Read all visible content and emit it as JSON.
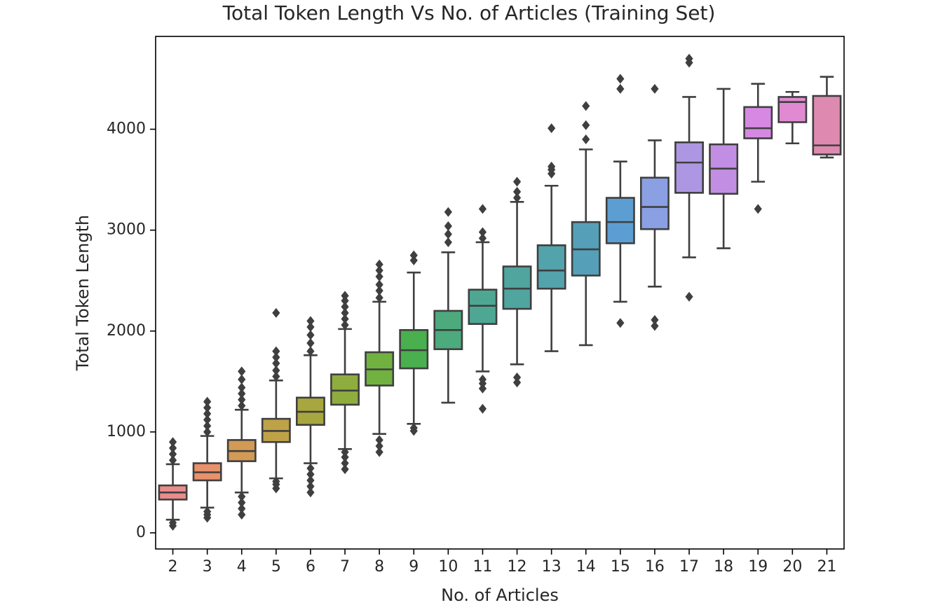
{
  "chart_data": {
    "type": "box",
    "title": "Total Token Length Vs No. of Articles (Training Set)",
    "xlabel": "No. of Articles",
    "ylabel": "Total Token Length",
    "ylim": [
      -160,
      4920
    ],
    "yticks": [
      0,
      1000,
      2000,
      3000,
      4000
    ],
    "grid": false,
    "categories": [
      "2",
      "3",
      "4",
      "5",
      "6",
      "7",
      "8",
      "9",
      "10",
      "11",
      "12",
      "13",
      "14",
      "15",
      "16",
      "17",
      "18",
      "19",
      "20",
      "21"
    ],
    "colors": [
      "#ec8b8b",
      "#e8916b",
      "#d29a54",
      "#bfa247",
      "#a8a73f",
      "#8fad3e",
      "#71b140",
      "#4aaf4e",
      "#4daa7d",
      "#4ea793",
      "#50a59f",
      "#52a3ab",
      "#55a0b8",
      "#5c9ed2",
      "#8aa0e3",
      "#ad97e3",
      "#c28ee4",
      "#d689e3",
      "#e08ad2",
      "#de8ab0"
    ],
    "boxes": [
      {
        "q1": 330,
        "median": 400,
        "q3": 470,
        "whisker_low": 130,
        "whisker_high": 680,
        "outliers": [
          70,
          100,
          720,
          780,
          840,
          900
        ]
      },
      {
        "q1": 520,
        "median": 600,
        "q3": 690,
        "whisker_low": 250,
        "whisker_high": 960,
        "outliers": [
          150,
          180,
          210,
          1000,
          1060,
          1120,
          1180,
          1240,
          1300
        ]
      },
      {
        "q1": 710,
        "median": 810,
        "q3": 920,
        "whisker_low": 400,
        "whisker_high": 1220,
        "outliers": [
          180,
          240,
          300,
          360,
          1260,
          1320,
          1380,
          1440,
          1520,
          1600
        ]
      },
      {
        "q1": 900,
        "median": 1010,
        "q3": 1130,
        "whisker_low": 540,
        "whisker_high": 1510,
        "outliers": [
          440,
          480,
          510,
          1550,
          1610,
          1680,
          1740,
          1800,
          2180
        ]
      },
      {
        "q1": 1070,
        "median": 1200,
        "q3": 1340,
        "whisker_low": 690,
        "whisker_high": 1760,
        "outliers": [
          400,
          460,
          520,
          580,
          640,
          1800,
          1880,
          1960,
          2040,
          2100
        ]
      },
      {
        "q1": 1270,
        "median": 1410,
        "q3": 1570,
        "whisker_low": 830,
        "whisker_high": 2020,
        "outliers": [
          630,
          690,
          750,
          800,
          2060,
          2120,
          2180,
          2240,
          2300,
          2350
        ]
      },
      {
        "q1": 1460,
        "median": 1620,
        "q3": 1790,
        "whisker_low": 980,
        "whisker_high": 2290,
        "outliers": [
          800,
          860,
          920,
          2330,
          2400,
          2460,
          2540,
          2600,
          2660
        ]
      },
      {
        "q1": 1630,
        "median": 1810,
        "q3": 2010,
        "whisker_low": 1080,
        "whisker_high": 2580,
        "outliers": [
          1010,
          1040,
          2700,
          2750
        ]
      },
      {
        "q1": 1820,
        "median": 2010,
        "q3": 2200,
        "whisker_low": 1290,
        "whisker_high": 2780,
        "outliers": [
          2880,
          2960,
          3040,
          3180
        ]
      },
      {
        "q1": 2070,
        "median": 2250,
        "q3": 2410,
        "whisker_low": 1600,
        "whisker_high": 2880,
        "outliers": [
          1230,
          1430,
          1480,
          1520,
          2920,
          2980,
          3210
        ]
      },
      {
        "q1": 2220,
        "median": 2420,
        "q3": 2640,
        "whisker_low": 1670,
        "whisker_high": 3280,
        "outliers": [
          1490,
          1540,
          3320,
          3380,
          3480
        ]
      },
      {
        "q1": 2420,
        "median": 2600,
        "q3": 2850,
        "whisker_low": 1800,
        "whisker_high": 3440,
        "outliers": [
          3560,
          3600,
          3630,
          4010
        ]
      },
      {
        "q1": 2550,
        "median": 2810,
        "q3": 3080,
        "whisker_low": 1860,
        "whisker_high": 3800,
        "outliers": [
          3900,
          4040,
          4230
        ]
      },
      {
        "q1": 2870,
        "median": 3080,
        "q3": 3320,
        "whisker_low": 2290,
        "whisker_high": 3680,
        "outliers": [
          2080,
          4400,
          4500
        ]
      },
      {
        "q1": 3010,
        "median": 3230,
        "q3": 3520,
        "whisker_low": 2440,
        "whisker_high": 3890,
        "outliers": [
          2050,
          2110,
          4400
        ]
      },
      {
        "q1": 3370,
        "median": 3670,
        "q3": 3870,
        "whisker_low": 2730,
        "whisker_high": 4320,
        "outliers": [
          2340,
          4660,
          4700
        ]
      },
      {
        "q1": 3360,
        "median": 3610,
        "q3": 3850,
        "whisker_low": 2820,
        "whisker_high": 4400,
        "outliers": []
      },
      {
        "q1": 3910,
        "median": 4010,
        "q3": 4220,
        "whisker_low": 3480,
        "whisker_high": 4450,
        "outliers": [
          3210
        ]
      },
      {
        "q1": 4070,
        "median": 4270,
        "q3": 4320,
        "whisker_low": 3860,
        "whisker_high": 4370,
        "outliers": []
      },
      {
        "q1": 3750,
        "median": 3840,
        "q3": 4330,
        "whisker_low": 3720,
        "whisker_high": 4520,
        "outliers": []
      }
    ]
  }
}
